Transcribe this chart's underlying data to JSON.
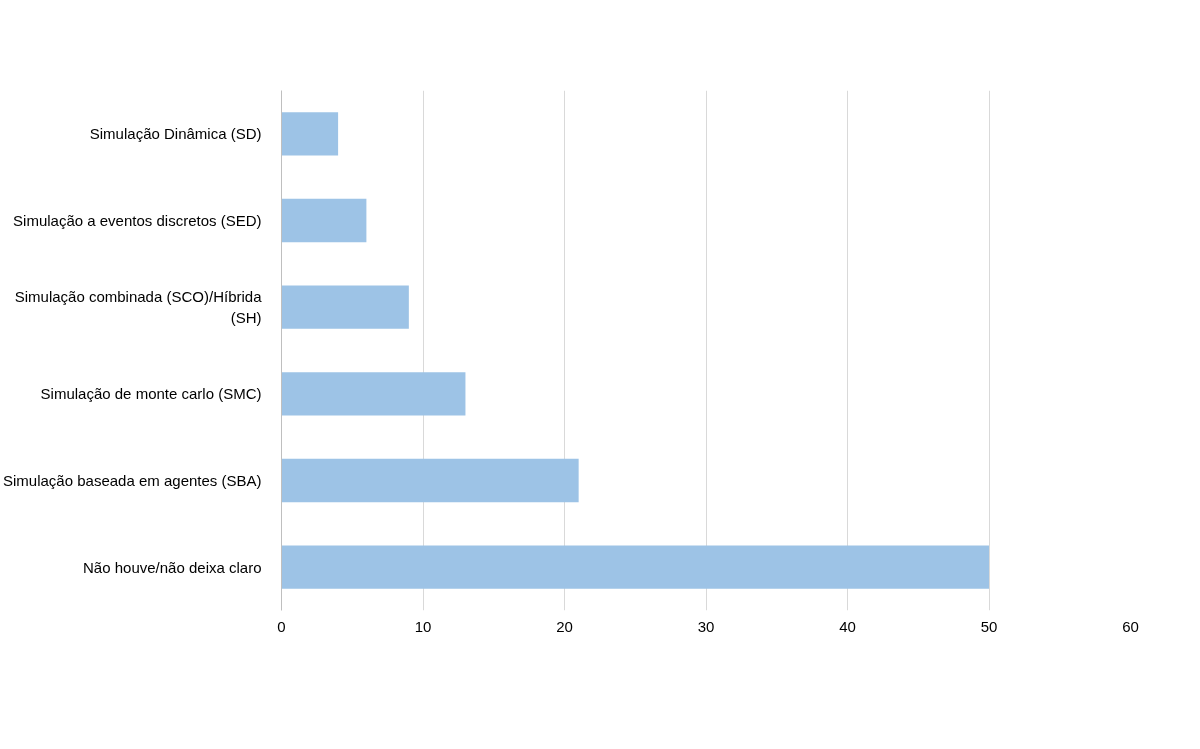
{
  "chart_data": {
    "type": "bar",
    "orientation": "horizontal",
    "categories": [
      "Simulação Dinâmica (SD)",
      "Simulação a eventos discretos (SED)",
      "Simulação combinada (SCO)/Híbrida (SH)",
      "Simulação de monte carlo (SMC)",
      "Simulação baseada em agentes (SBA)",
      "Não houve/não deixa claro"
    ],
    "values": [
      4,
      6,
      9,
      13,
      21,
      50
    ],
    "color": "#9dc3e6",
    "xlim": [
      0,
      60
    ],
    "xticks": [
      0,
      10,
      20,
      30,
      40,
      50,
      60
    ],
    "grid": "x"
  }
}
